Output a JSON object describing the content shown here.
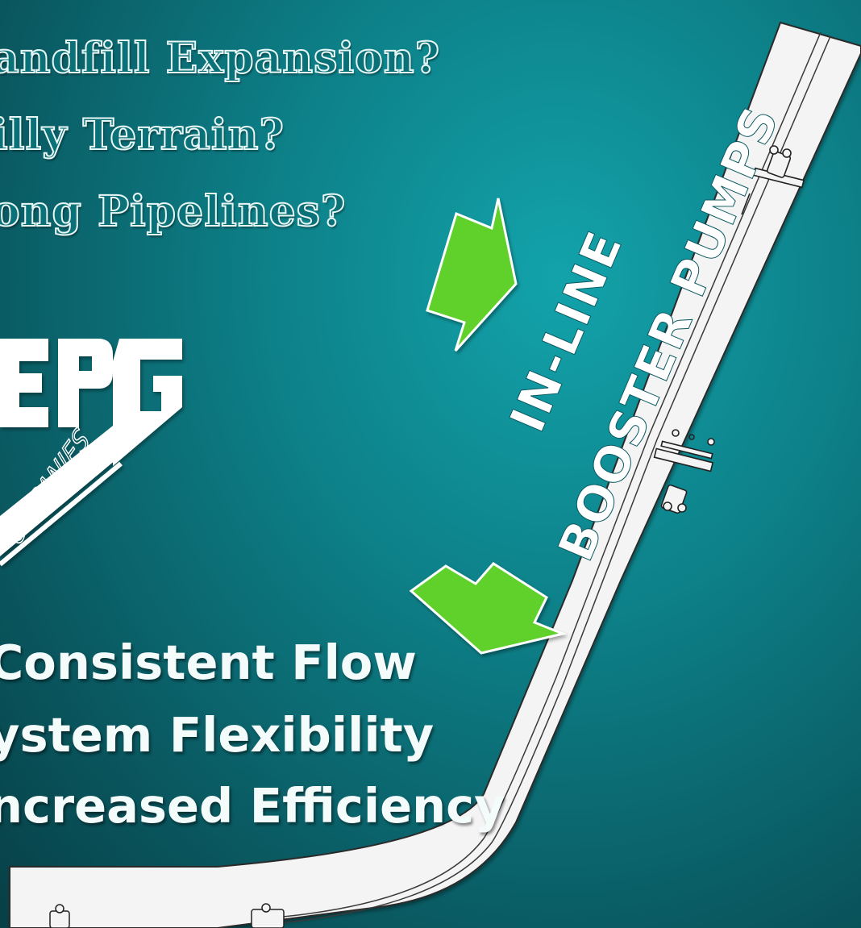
{
  "questions": [
    "andfill Expansion?",
    "illy Terrain?",
    "ong Pipelines?"
  ],
  "benefits": [
    "Consistent Flow",
    "ystem Flexibility",
    "ncreased Efficiency"
  ],
  "logo": {
    "letters": "EPG",
    "subtitle": "OMPANIES"
  },
  "callout": {
    "line1": "IN-LINE",
    "line2": "BOOSTER PUMPS"
  },
  "colors": {
    "background": "#0d7f87",
    "arrow": "#5fd12a",
    "pipe": "#f4f4f4",
    "question_fill": "#0b7178"
  }
}
